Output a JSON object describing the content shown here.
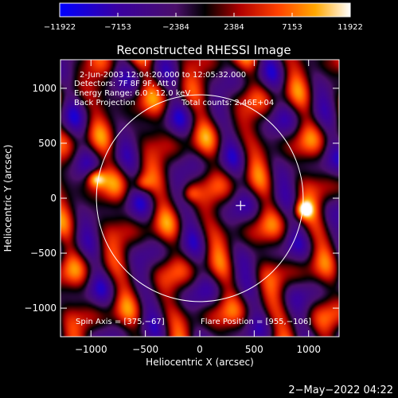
{
  "chart_data": {
    "type": "heatmap",
    "title": "Reconstructed RHESSI Image",
    "xlabel": "Heliocentric X (arcsec)",
    "ylabel": "Heliocentric Y (arcsec)",
    "xlim": [
      -1280,
      1280
    ],
    "ylim": [
      -1260,
      1260
    ],
    "x_ticks": [
      -1000,
      -500,
      0,
      500,
      1000
    ],
    "x_tick_labels": [
      "−1000",
      "−500",
      "0",
      "500",
      "1000"
    ],
    "y_ticks": [
      1000,
      500,
      0,
      -500,
      -1000
    ],
    "y_tick_labels": [
      "1000",
      "500",
      "0",
      "−500",
      "−1000"
    ],
    "colorbar": {
      "range": [
        -11922,
        11922
      ],
      "ticks": [
        -11922,
        -7153,
        -2384,
        2384,
        7153,
        11922
      ],
      "tick_labels": [
        "−11922",
        "−7153",
        "−2384",
        "2384",
        "7153",
        "11922"
      ],
      "colors": [
        "#0000ff",
        "#3a00a0",
        "#4a0f6a",
        "#000000",
        "#b00000",
        "#ff4000",
        "#ffa800",
        "#ffffff"
      ]
    },
    "solar_disk": {
      "center": [
        0,
        0
      ],
      "radius": 950,
      "color": "#ffffff"
    },
    "sources": [
      {
        "x": -955,
        "y": 180,
        "intensity": 11922
      },
      {
        "x": 955,
        "y": -106,
        "intensity": 11922
      },
      {
        "x": -530,
        "y": 130,
        "intensity": 6500
      },
      {
        "x": -90,
        "y": 40,
        "intensity": 6000
      }
    ],
    "center_marker": [
      375,
      -67
    ],
    "annotations": {
      "time": "2-Jun-2003 12:04:20.000 to 12:05:32.000",
      "detectors": "Detectors: 7F 8F 9F, Att 0",
      "energy": "Energy Range: 6.0 - 12.0 keV",
      "method": "Back Projection",
      "counts": "Total counts: 2.46E+04",
      "spin_axis": "Spin Axis = [375,−67]",
      "flare_position": "Flare Position = [955,−106]"
    },
    "footer_date": "2−May−2022 04:22"
  }
}
